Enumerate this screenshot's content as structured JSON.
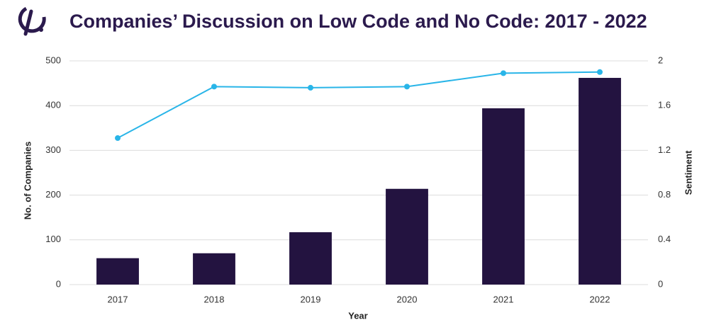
{
  "chart_data": {
    "type": "bar",
    "title": "Companies’ Discussion on Low Code and No Code: 2017 - 2022",
    "x_label": "Year",
    "y_label": "No. of Companies",
    "y2_label": "Sentiment",
    "categories": [
      "2017",
      "2018",
      "2019",
      "2020",
      "2021",
      "2022"
    ],
    "series": [
      {
        "type": "bar",
        "color": "#231340",
        "values": [
          59,
          70,
          117,
          214,
          394,
          462
        ]
      },
      {
        "type": "line",
        "axis": "y2",
        "color": "#29b5e8",
        "values": [
          1.31,
          1.77,
          1.76,
          1.77,
          1.89,
          1.9
        ]
      }
    ],
    "ylim": [
      0,
      500
    ],
    "yticks": [
      0,
      100,
      200,
      300,
      400,
      500
    ],
    "y2lim": [
      0,
      2
    ],
    "y2ticks": [
      0,
      0.4,
      0.8,
      1.2,
      1.6,
      2
    ],
    "grid": true
  }
}
